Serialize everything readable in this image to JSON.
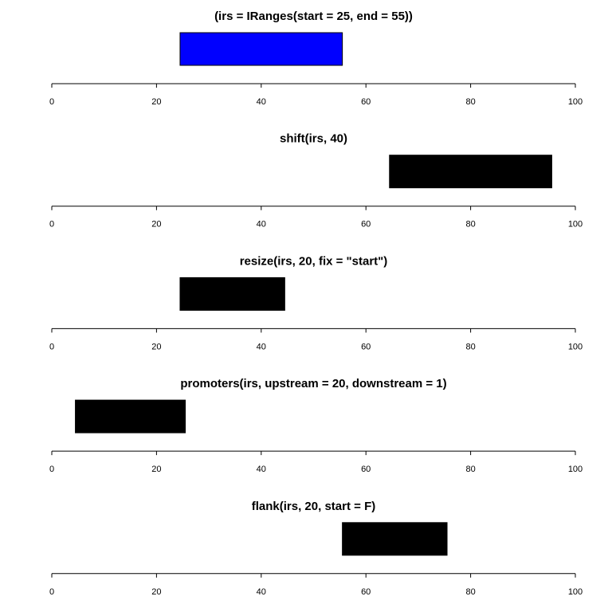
{
  "chart_data": [
    {
      "type": "bar",
      "title": "(irs = IRanges(start = 25, end = 55))",
      "ranges": [
        {
          "start": 25,
          "end": 55
        }
      ],
      "color": "#0000ff",
      "border": "#000000",
      "xlim": [
        0,
        100
      ],
      "xticks": [
        0,
        20,
        40,
        60,
        80,
        100
      ],
      "grid": false
    },
    {
      "type": "bar",
      "title": "shift(irs, 40)",
      "ranges": [
        {
          "start": 65,
          "end": 95
        }
      ],
      "color": "#000000",
      "border": "#000000",
      "xlim": [
        0,
        100
      ],
      "xticks": [
        0,
        20,
        40,
        60,
        80,
        100
      ],
      "grid": false
    },
    {
      "type": "bar",
      "title": "resize(irs, 20, fix = \"start\")",
      "ranges": [
        {
          "start": 25,
          "end": 44
        }
      ],
      "color": "#000000",
      "border": "#000000",
      "xlim": [
        0,
        100
      ],
      "xticks": [
        0,
        20,
        40,
        60,
        80,
        100
      ],
      "grid": false
    },
    {
      "type": "bar",
      "title": "promoters(irs, upstream = 20, downstream = 1)",
      "ranges": [
        {
          "start": 5,
          "end": 25
        }
      ],
      "color": "#000000",
      "border": "#000000",
      "xlim": [
        0,
        100
      ],
      "xticks": [
        0,
        20,
        40,
        60,
        80,
        100
      ],
      "grid": false
    },
    {
      "type": "bar",
      "title": "flank(irs, 20, start = F)",
      "ranges": [
        {
          "start": 56,
          "end": 75
        }
      ],
      "color": "#000000",
      "border": "#000000",
      "xlim": [
        0,
        100
      ],
      "xticks": [
        0,
        20,
        40,
        60,
        80,
        100
      ],
      "grid": false
    }
  ]
}
